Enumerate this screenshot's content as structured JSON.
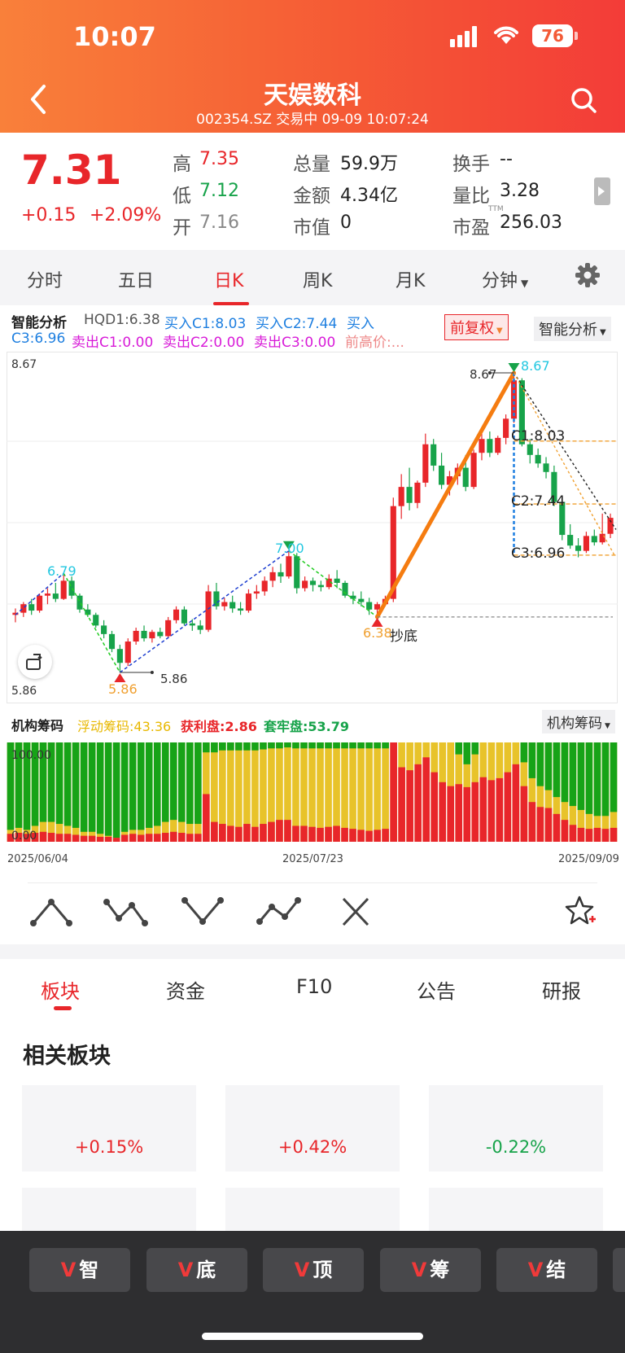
{
  "status": {
    "time": "10:07",
    "battery": "76"
  },
  "header": {
    "title": "天娱数科",
    "subtitle": "002354.SZ 交易中 09-09 10:07:24"
  },
  "quote": {
    "price": "7.31",
    "change": "+0.15",
    "change_pct": "+2.09%",
    "fields": [
      {
        "label": "高",
        "value": "7.35"
      },
      {
        "label": "低",
        "value": "7.12"
      },
      {
        "label": "开",
        "value": "7.16"
      },
      {
        "label": "总量",
        "value": "59.9万"
      },
      {
        "label": "金额",
        "value": "4.34亿"
      },
      {
        "label": "市值",
        "value": "0"
      },
      {
        "label": "换手",
        "value": "--"
      },
      {
        "label": "量比",
        "value": "3.28"
      },
      {
        "label": "市盈",
        "value": "256.03",
        "sup": "TTM"
      }
    ]
  },
  "period_tabs": [
    "分时",
    "五日",
    "日K",
    "周K",
    "月K",
    "分钟"
  ],
  "active_period": "日K",
  "analysis": {
    "title": "智能分析",
    "hqd": "HQD1:6.38",
    "buy_c1": "买入C1:8.03",
    "buy_c2": "买入C2:7.44",
    "buy": "买入",
    "c3": "C3:6.96",
    "sell_c1": "卖出C1:0.00",
    "sell_c2": "卖出C2:0.00",
    "sell_c3": "卖出C3:0.00",
    "prev_high": "前高价:...",
    "fq_button": "前复权",
    "mode_button": "智能分析"
  },
  "chart_labels": {
    "ymax": "8.67",
    "ymin": "5.86",
    "peak1": "6.79",
    "low1": "5.86",
    "low1_side": "5.86",
    "peak2": "7.00",
    "low2": "6.38",
    "low2_note": "抄底",
    "top": "8.67",
    "top_side": "8.67",
    "c1": "C1:8.03",
    "c2": "C2:7.44",
    "c3": "C3:6.96"
  },
  "chart_data": {
    "type": "candlestick",
    "ylim": [
      5.86,
      8.67
    ],
    "x_start": "2025/06/04",
    "x_mid": "2025/07/23",
    "x_end": "2025/09/09",
    "ohlc": [
      [
        6.4,
        6.46,
        6.33,
        6.42
      ],
      [
        6.42,
        6.52,
        6.38,
        6.5
      ],
      [
        6.5,
        6.55,
        6.4,
        6.44
      ],
      [
        6.44,
        6.6,
        6.42,
        6.58
      ],
      [
        6.58,
        6.65,
        6.5,
        6.6
      ],
      [
        6.6,
        6.7,
        6.52,
        6.55
      ],
      [
        6.55,
        6.79,
        6.54,
        6.72
      ],
      [
        6.72,
        6.76,
        6.55,
        6.58
      ],
      [
        6.58,
        6.6,
        6.42,
        6.45
      ],
      [
        6.45,
        6.5,
        6.38,
        6.4
      ],
      [
        6.4,
        6.42,
        6.28,
        6.3
      ],
      [
        6.3,
        6.35,
        6.18,
        6.22
      ],
      [
        6.22,
        6.25,
        6.05,
        6.08
      ],
      [
        6.08,
        6.12,
        5.86,
        5.95
      ],
      [
        5.95,
        6.18,
        5.92,
        6.15
      ],
      [
        6.15,
        6.28,
        6.12,
        6.25
      ],
      [
        6.25,
        6.3,
        6.15,
        6.18
      ],
      [
        6.18,
        6.26,
        6.14,
        6.24
      ],
      [
        6.24,
        6.28,
        6.18,
        6.2
      ],
      [
        6.2,
        6.38,
        6.18,
        6.35
      ],
      [
        6.35,
        6.48,
        6.32,
        6.45
      ],
      [
        6.45,
        6.48,
        6.3,
        6.32
      ],
      [
        6.32,
        6.36,
        6.25,
        6.3
      ],
      [
        6.3,
        6.35,
        6.22,
        6.26
      ],
      [
        6.26,
        6.68,
        6.24,
        6.62
      ],
      [
        6.62,
        6.7,
        6.45,
        6.48
      ],
      [
        6.48,
        6.56,
        6.44,
        6.52
      ],
      [
        6.52,
        6.58,
        6.42,
        6.46
      ],
      [
        6.46,
        6.52,
        6.4,
        6.44
      ],
      [
        6.44,
        6.64,
        6.42,
        6.6
      ],
      [
        6.6,
        6.68,
        6.55,
        6.62
      ],
      [
        6.62,
        6.76,
        6.58,
        6.72
      ],
      [
        6.72,
        6.85,
        6.66,
        6.8
      ],
      [
        6.8,
        6.88,
        6.7,
        6.76
      ],
      [
        6.76,
        7.0,
        6.74,
        6.95
      ],
      [
        6.95,
        6.98,
        6.6,
        6.65
      ],
      [
        6.65,
        6.76,
        6.62,
        6.72
      ],
      [
        6.72,
        6.75,
        6.62,
        6.68
      ],
      [
        6.68,
        6.72,
        6.62,
        6.66
      ],
      [
        6.66,
        6.78,
        6.64,
        6.74
      ],
      [
        6.74,
        6.82,
        6.65,
        6.7
      ],
      [
        6.7,
        6.72,
        6.56,
        6.58
      ],
      [
        6.58,
        6.62,
        6.5,
        6.55
      ],
      [
        6.55,
        6.62,
        6.48,
        6.52
      ],
      [
        6.52,
        6.56,
        6.4,
        6.45
      ],
      [
        6.45,
        6.52,
        6.38,
        6.5
      ],
      [
        6.5,
        6.58,
        6.48,
        6.55
      ],
      [
        6.55,
        7.5,
        6.52,
        7.42
      ],
      [
        7.42,
        7.72,
        7.3,
        7.6
      ],
      [
        7.6,
        7.78,
        7.38,
        7.45
      ],
      [
        7.45,
        7.66,
        7.4,
        7.64
      ],
      [
        7.64,
        8.1,
        7.6,
        8.0
      ],
      [
        8.0,
        8.05,
        7.75,
        7.8
      ],
      [
        7.8,
        7.92,
        7.58,
        7.62
      ],
      [
        7.62,
        7.75,
        7.52,
        7.7
      ],
      [
        7.7,
        7.82,
        7.62,
        7.78
      ],
      [
        7.78,
        7.9,
        7.56,
        7.6
      ],
      [
        7.6,
        7.95,
        7.58,
        7.92
      ],
      [
        7.92,
        8.1,
        7.85,
        8.05
      ],
      [
        8.05,
        8.12,
        7.88,
        7.92
      ],
      [
        7.92,
        8.08,
        7.9,
        8.06
      ],
      [
        8.06,
        8.28,
        8.0,
        8.24
      ],
      [
        8.24,
        8.67,
        8.2,
        8.6
      ],
      [
        8.6,
        8.62,
        7.98,
        8.0
      ],
      [
        8.0,
        8.05,
        7.82,
        7.9
      ],
      [
        7.9,
        7.96,
        7.78,
        7.82
      ],
      [
        7.82,
        7.88,
        7.68,
        7.74
      ],
      [
        7.74,
        7.8,
        7.42,
        7.46
      ],
      [
        7.46,
        7.5,
        7.1,
        7.15
      ],
      [
        7.15,
        7.25,
        7.02,
        7.05
      ],
      [
        7.05,
        7.12,
        6.94,
        7.0
      ],
      [
        7.0,
        7.18,
        6.98,
        7.14
      ],
      [
        7.14,
        7.2,
        7.05,
        7.08
      ],
      [
        7.08,
        7.35,
        7.06,
        7.16
      ],
      [
        7.16,
        7.35,
        7.12,
        7.31
      ]
    ]
  },
  "chips": {
    "title": "机构筹码",
    "float": "浮动筹码:43.36",
    "profit": "获利盘:2.86",
    "trapped": "套牢盘:53.79",
    "top_label": "100.00",
    "bottom_label": "0.00",
    "button": "机构筹码",
    "profit_pct": [
      8,
      9,
      8,
      9,
      10,
      9,
      8,
      8,
      7,
      6,
      6,
      5,
      5,
      4,
      7,
      8,
      7,
      8,
      8,
      9,
      10,
      9,
      8,
      8,
      48,
      20,
      18,
      16,
      15,
      18,
      15,
      18,
      20,
      22,
      22,
      16,
      16,
      15,
      14,
      15,
      16,
      14,
      13,
      12,
      11,
      12,
      13,
      100,
      75,
      72,
      78,
      85,
      70,
      60,
      56,
      58,
      55,
      60,
      65,
      62,
      64,
      70,
      78,
      56,
      40,
      35,
      34,
      28,
      22,
      17,
      14,
      13,
      14,
      13,
      14
    ],
    "trapped_pct": [
      88,
      86,
      88,
      84,
      80,
      80,
      82,
      84,
      86,
      90,
      90,
      92,
      94,
      96,
      90,
      88,
      88,
      86,
      84,
      80,
      78,
      80,
      82,
      82,
      10,
      10,
      8,
      8,
      8,
      8,
      8,
      7,
      6,
      6,
      5,
      6,
      6,
      6,
      6,
      6,
      6,
      6,
      6,
      6,
      6,
      6,
      6,
      0,
      0,
      0,
      0,
      0,
      0,
      0,
      0,
      12,
      22,
      12,
      0,
      0,
      0,
      0,
      0,
      20,
      36,
      44,
      48,
      55,
      60,
      64,
      68,
      72,
      74,
      74,
      70
    ]
  },
  "chip_dates": {
    "start": "2025/06/04",
    "mid": "2025/07/23",
    "end": "2025/09/09"
  },
  "bottom_tabs": [
    "板块",
    "资金",
    "F10",
    "公告",
    "研报"
  ],
  "section_title": "相关板块",
  "sector_cards": [
    {
      "value": "+0.15%"
    },
    {
      "value": "+0.42%"
    },
    {
      "value": "-0.22%"
    }
  ],
  "bottom_bar": [
    "智",
    "底",
    "顶",
    "筹",
    "结"
  ],
  "colors": {
    "up": "#e8262a",
    "down": "#17a34a",
    "accent": "#f55a35"
  }
}
